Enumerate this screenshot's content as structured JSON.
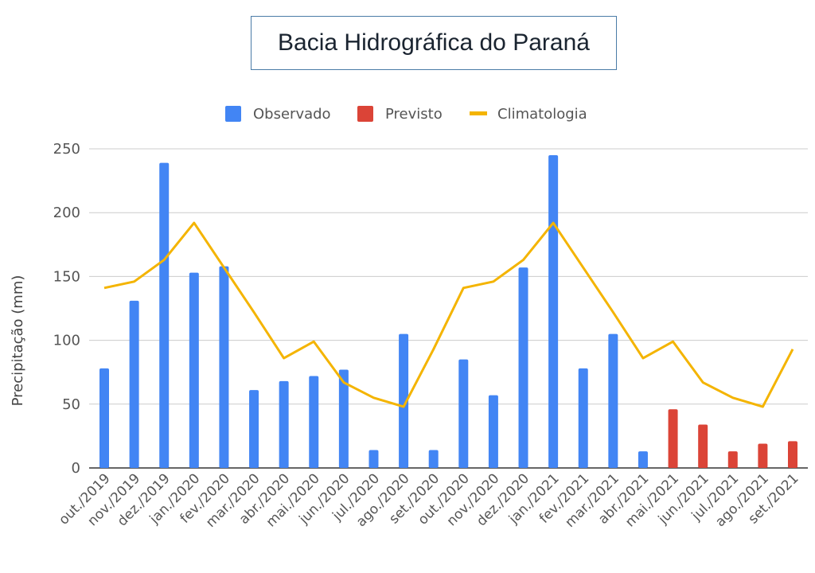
{
  "chart_data": {
    "type": "bar",
    "title": "Bacia Hidrográfica do Paraná",
    "ylabel": "Precipitação (mm)",
    "xlabel": "",
    "ylim": [
      0,
      250
    ],
    "yticks": [
      0,
      50,
      100,
      150,
      200,
      250
    ],
    "grid": true,
    "legend_position": "top-center",
    "categories": [
      "out./2019",
      "nov./2019",
      "dez./2019",
      "jan./2020",
      "fev./2020",
      "mar./2020",
      "abr./2020",
      "mai./2020",
      "jun./2020",
      "jul./2020",
      "ago./2020",
      "set./2020",
      "out./2020",
      "nov./2020",
      "dez./2020",
      "jan./2021",
      "fev./2021",
      "mar./2021",
      "abr./2021",
      "mai./2021",
      "jun./2021",
      "jul./2021",
      "ago./2021",
      "set./2021"
    ],
    "series": [
      {
        "name": "Observado",
        "kind": "bar",
        "color": "#4285f4",
        "values": [
          78,
          131,
          239,
          153,
          158,
          61,
          68,
          72,
          77,
          14,
          105,
          14,
          85,
          57,
          157,
          245,
          78,
          105,
          13,
          null,
          null,
          null,
          null,
          null
        ]
      },
      {
        "name": "Previsto",
        "kind": "bar",
        "color": "#db4437",
        "values": [
          null,
          null,
          null,
          null,
          null,
          null,
          null,
          null,
          null,
          null,
          null,
          null,
          null,
          null,
          null,
          null,
          null,
          null,
          null,
          46,
          34,
          13,
          19,
          21
        ]
      },
      {
        "name": "Climatologia",
        "kind": "line",
        "color": "#f4b400",
        "values": [
          141,
          146,
          163,
          192,
          157,
          122,
          86,
          99,
          67,
          55,
          48,
          93,
          141,
          146,
          163,
          192,
          157,
          122,
          86,
          99,
          67,
          55,
          48,
          93
        ]
      }
    ]
  }
}
